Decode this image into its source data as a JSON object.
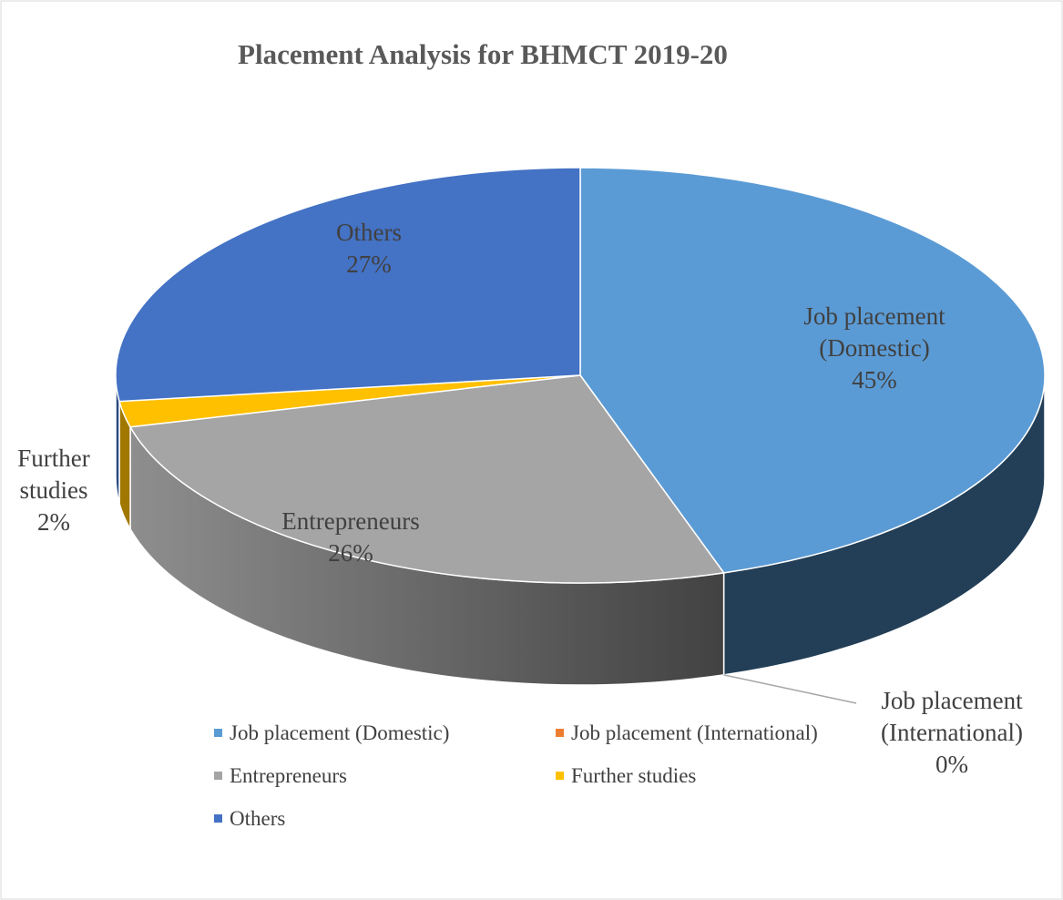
{
  "chart_data": {
    "type": "pie",
    "title": "Placement Analysis for BHMCT 2019-20",
    "categories": [
      "Job placement (Domestic)",
      "Job placement (International)",
      "Entrepreneurs",
      "Further studies",
      "Others"
    ],
    "values": [
      45,
      0,
      26,
      2,
      27
    ],
    "value_labels": [
      "45%",
      "0%",
      "26%",
      "2%",
      "27%"
    ],
    "colors": [
      "#5b9bd5",
      "#ed7d31",
      "#a5a5a5",
      "#ffc000",
      "#4472c4"
    ],
    "legend": "bottom"
  }
}
